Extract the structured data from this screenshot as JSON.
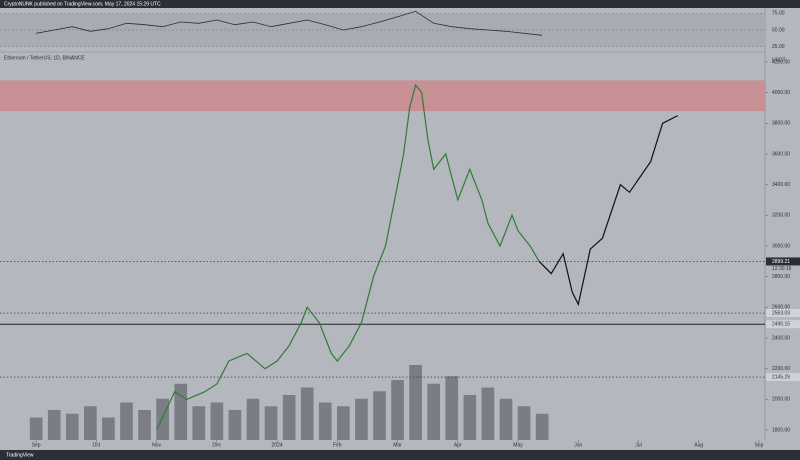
{
  "header": "CryptoNUNK published on TradingView.com, May 17, 2024 15:29 UTC",
  "footer": "TradingView",
  "chart_data": {
    "type": "line",
    "title": "Ethereum / TetherUS, 1D, BINANCE",
    "currency": "USDT",
    "countdown": "12:30:16",
    "xlim": [
      -0.6,
      12.1
    ],
    "xticks": [
      {
        "value": 0,
        "label": "Sep"
      },
      {
        "value": 1,
        "label": "Oct"
      },
      {
        "value": 2,
        "label": "Nov"
      },
      {
        "value": 3,
        "label": "Dec"
      },
      {
        "value": 4,
        "label": "2024"
      },
      {
        "value": 5,
        "label": "Feb"
      },
      {
        "value": 6,
        "label": "Mar"
      },
      {
        "value": 7,
        "label": "Apr"
      },
      {
        "value": 8,
        "label": "May"
      },
      {
        "value": 9,
        "label": "Jun"
      },
      {
        "value": 10,
        "label": "Jul"
      },
      {
        "value": 11,
        "label": "Aug"
      },
      {
        "value": 12,
        "label": "Sep"
      }
    ],
    "ylim": [
      1735,
      4265
    ],
    "yticks": [
      {
        "value": 1800,
        "label": "1800.00"
      },
      {
        "value": 2000,
        "label": "2000.00"
      },
      {
        "value": 2200,
        "label": "2200.00"
      },
      {
        "value": 2400,
        "label": "2400.00"
      },
      {
        "value": 2600,
        "label": "2600.00"
      },
      {
        "value": 2800,
        "label": "2800.00"
      },
      {
        "value": 3000,
        "label": "3000.00"
      },
      {
        "value": 3200,
        "label": "3200.00"
      },
      {
        "value": 3400,
        "label": "3400.00"
      },
      {
        "value": 3600,
        "label": "3600.00"
      },
      {
        "value": 3800,
        "label": "3800.00"
      },
      {
        "value": 4000,
        "label": "4000.00"
      },
      {
        "value": 4200,
        "label": "4200.00"
      }
    ],
    "series": [
      {
        "color": "#2e7d32",
        "x": [
          2.0,
          2.3,
          2.5,
          2.8,
          3.0,
          3.2,
          3.5,
          3.8,
          4.0,
          4.2,
          4.4,
          4.5,
          4.7,
          4.9,
          5.0,
          5.2,
          5.4,
          5.6,
          5.8,
          6.0,
          6.1,
          6.2,
          6.3,
          6.4,
          6.5,
          6.6,
          6.8,
          7.0,
          7.2,
          7.4,
          7.5,
          7.7,
          7.9,
          8.0,
          8.2,
          8.35
        ],
        "values": [
          1800,
          2050,
          2000,
          2050,
          2100,
          2250,
          2300,
          2200,
          2250,
          2350,
          2500,
          2600,
          2500,
          2300,
          2250,
          2350,
          2500,
          2800,
          3000,
          3400,
          3600,
          3900,
          4050,
          4000,
          3700,
          3500,
          3600,
          3300,
          3500,
          3300,
          3150,
          3000,
          3200,
          3100,
          3000,
          2900
        ]
      },
      {
        "color": "#111111",
        "x": [
          8.35,
          8.55,
          8.75,
          8.9,
          9.0,
          9.2,
          9.4,
          9.7,
          9.85,
          10.2,
          10.4,
          10.65
        ],
        "values": [
          2900,
          2820,
          2950,
          2700,
          2620,
          2980,
          3050,
          3400,
          3350,
          3550,
          3800,
          3850
        ]
      }
    ],
    "zones": [
      {
        "from": 3880,
        "to": 4080,
        "color": "#c98a8e"
      }
    ],
    "levels": [
      {
        "value": 2899.21,
        "style": "dotted"
      },
      {
        "value": 2563.03,
        "style": "dotted"
      },
      {
        "value": 2490.15,
        "style": "solid"
      },
      {
        "value": 2145.29,
        "style": "dotted"
      }
    ],
    "volume": {
      "color": "#6b6e75",
      "ylim": [
        0,
        120
      ],
      "x": [
        0,
        0.3,
        0.6,
        0.9,
        1.2,
        1.5,
        1.8,
        2.1,
        2.4,
        2.7,
        3.0,
        3.3,
        3.6,
        3.9,
        4.2,
        4.5,
        4.8,
        5.1,
        5.4,
        5.7,
        6.0,
        6.3,
        6.6,
        6.9,
        7.2,
        7.5,
        7.8,
        8.1,
        8.4
      ],
      "values": [
        30,
        40,
        35,
        45,
        30,
        50,
        40,
        55,
        75,
        45,
        50,
        40,
        55,
        45,
        60,
        70,
        50,
        45,
        55,
        65,
        80,
        100,
        75,
        85,
        60,
        70,
        55,
        45,
        35
      ]
    },
    "rsi": {
      "color": "#2a2e39",
      "ylim": [
        20,
        80
      ],
      "bands": [
        {
          "value": 75,
          "label": "75.00"
        },
        {
          "value": 50,
          "label": "50.00"
        },
        {
          "value": 25,
          "label": "25.00"
        }
      ],
      "x": [
        0,
        0.3,
        0.6,
        0.9,
        1.2,
        1.5,
        1.8,
        2.1,
        2.4,
        2.7,
        3.0,
        3.3,
        3.6,
        3.9,
        4.2,
        4.5,
        4.8,
        5.1,
        5.4,
        5.7,
        6.0,
        6.3,
        6.6,
        6.9,
        7.2,
        7.5,
        7.8,
        8.1,
        8.4
      ],
      "values": [
        45,
        50,
        55,
        48,
        52,
        60,
        58,
        55,
        62,
        60,
        65,
        58,
        62,
        55,
        60,
        65,
        58,
        50,
        55,
        62,
        70,
        78,
        60,
        55,
        52,
        50,
        48,
        45,
        42
      ]
    }
  }
}
